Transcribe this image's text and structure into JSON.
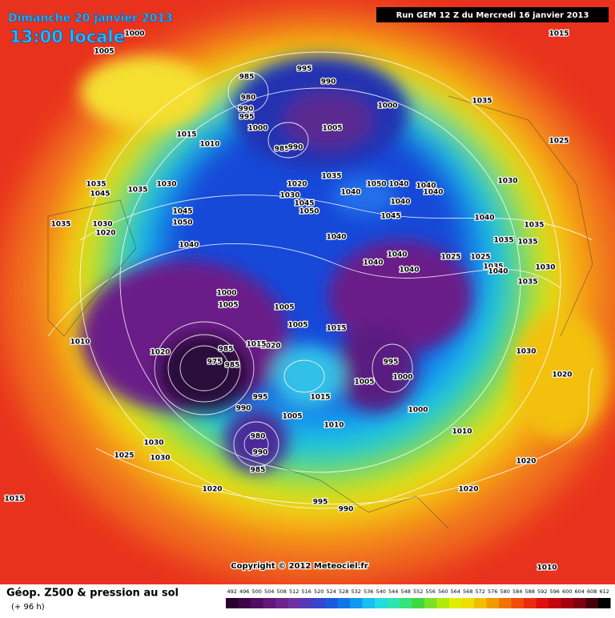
{
  "header": {
    "date": "Dimanche 20 janvier 2013",
    "time": "13:00 locale",
    "run": "Run GEM 12 Z du Mercredi 16 janvier 2013"
  },
  "footer": {
    "title": "Géop. Z500 & pression au sol",
    "lead": "(+ 96 h)",
    "copyright": "Copyright © 2012 Meteociel.fr"
  },
  "legend": {
    "levels": [
      492,
      496,
      500,
      504,
      508,
      512,
      516,
      520,
      524,
      528,
      532,
      536,
      540,
      544,
      548,
      552,
      556,
      560,
      564,
      568,
      572,
      576,
      580,
      584,
      588,
      592,
      596,
      600,
      604,
      608,
      612
    ]
  },
  "isobar_labels": [
    1000,
    1005,
    1015,
    985,
    980,
    990,
    995,
    1000,
    995,
    990,
    1000,
    1005,
    985,
    990,
    1035,
    1025,
    1015,
    1010,
    1020,
    1035,
    1030,
    1045,
    1050,
    1040,
    1050,
    1040,
    1040,
    1040,
    1040,
    1045,
    1030,
    1040,
    1035,
    1035,
    1035,
    1040,
    1040,
    1045,
    1050,
    1030,
    1035,
    1045,
    1035,
    1035,
    1030,
    1020,
    1025,
    1025,
    1040,
    1040,
    1040,
    1035,
    1040,
    1030,
    1035,
    1000,
    1005,
    1005,
    1005,
    1015,
    1010,
    1020,
    985,
    975,
    985,
    1020,
    1015,
    995,
    1000,
    1005,
    1030,
    1020,
    995,
    990,
    1015,
    1005,
    1010,
    1000,
    1010,
    980,
    990,
    985,
    1030,
    1025,
    1030,
    1020,
    1020,
    1020,
    1015,
    995,
    990,
    1010
  ]
}
